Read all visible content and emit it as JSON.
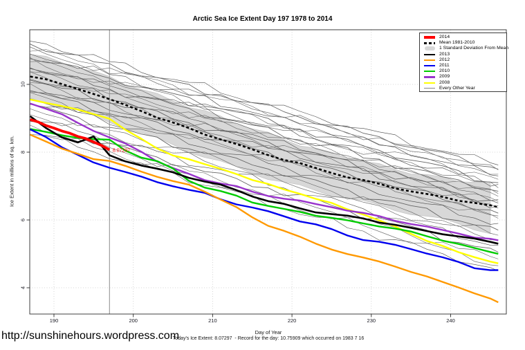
{
  "header": {
    "title": "Arctic Sea Ice Extent Day 197 1978 to 2014"
  },
  "footer": {
    "url": "http://sunshinehours.wordpress.com",
    "summary": "Today's Ice Extent: 8.07297  - Record for the day: 10.75909 which occurred on 1983 7 16"
  },
  "legend": {
    "items": [
      {
        "label": "2014",
        "color": "#FF0000",
        "type": "line",
        "weight": 3.5
      },
      {
        "label": "Mean 1981-2010",
        "color": "#000000",
        "type": "dashed",
        "weight": 2.5
      },
      {
        "label": "1 Standard Deviation From Mean",
        "color": "#D8D8D8",
        "type": "band"
      },
      {
        "label": "2013",
        "color": "#000000",
        "type": "line",
        "weight": 2.2
      },
      {
        "label": "2012",
        "color": "#FF9900",
        "type": "line",
        "weight": 2.2
      },
      {
        "label": "2011",
        "color": "#0000EE",
        "type": "line",
        "weight": 2.2
      },
      {
        "label": "2010",
        "color": "#00CC00",
        "type": "line",
        "weight": 2.2
      },
      {
        "label": "2009",
        "color": "#9933CC",
        "type": "line",
        "weight": 2.2
      },
      {
        "label": "2008",
        "color": "#FFFF00",
        "type": "line",
        "weight": 2.2
      },
      {
        "label": "Every Other Year",
        "color": "#888888",
        "type": "line",
        "weight": 1
      }
    ]
  },
  "chart_data": {
    "type": "line",
    "title": "Arctic Sea Ice Extent Day 197 1978 to 2014",
    "xlabel": "Day of Year",
    "ylabel": "Ice Extent in millions of sq. km.",
    "xlim": [
      187,
      247
    ],
    "ylim": [
      3.2,
      11.6
    ],
    "xticks": [
      190,
      200,
      210,
      220,
      230,
      240
    ],
    "yticks": [
      4,
      6,
      8,
      10
    ],
    "grid": true,
    "legend_position": "top-right",
    "today_marker": {
      "day": 197,
      "color": "#8C8C8C"
    },
    "annotation": {
      "text": "8.07297",
      "day": 197.4,
      "value": 8.05,
      "color": "#FF0000"
    },
    "x_days": [
      187,
      189,
      191,
      193,
      195,
      197,
      200,
      204,
      208,
      212,
      216,
      220,
      224,
      228,
      232,
      236,
      240,
      243,
      246
    ],
    "band": {
      "label": "1 Standard Deviation From Mean",
      "fill_color": "#D8D8D8",
      "edge_color": "#C2C2C2",
      "top": [
        10.9,
        10.78,
        10.65,
        10.52,
        10.37,
        10.2,
        9.95,
        9.6,
        9.28,
        8.95,
        8.62,
        8.3,
        8.02,
        7.8,
        7.55,
        7.35,
        7.2,
        7.12,
        7.05
      ],
      "bottom": [
        9.6,
        9.47,
        9.33,
        9.2,
        9.05,
        8.9,
        8.65,
        8.3,
        7.95,
        7.62,
        7.3,
        7.05,
        6.8,
        6.6,
        6.35,
        6.15,
        5.95,
        5.75,
        5.55
      ]
    },
    "mean": {
      "label": "Mean 1981-2010",
      "color": "#000000",
      "dashed": true,
      "values": [
        10.25,
        10.13,
        10.0,
        9.87,
        9.72,
        9.55,
        9.3,
        8.95,
        8.62,
        8.3,
        8.0,
        7.72,
        7.45,
        7.22,
        7.0,
        6.8,
        6.62,
        6.5,
        6.38
      ]
    },
    "series": [
      {
        "name": "2008",
        "color": "#FFFF00",
        "width": 2.4,
        "values": [
          9.55,
          9.46,
          9.35,
          9.25,
          9.12,
          9.0,
          8.5,
          8.0,
          7.7,
          7.45,
          7.1,
          6.85,
          6.55,
          6.25,
          5.9,
          5.5,
          5.12,
          4.9,
          4.72
        ]
      },
      {
        "name": "2009",
        "color": "#9933CC",
        "width": 2.4,
        "values": [
          9.45,
          9.28,
          9.1,
          8.88,
          8.65,
          8.42,
          8.15,
          7.6,
          7.25,
          7.05,
          6.76,
          6.6,
          6.42,
          6.25,
          6.05,
          5.85,
          5.65,
          5.5,
          5.4
        ]
      },
      {
        "name": "2010",
        "color": "#00CC00",
        "width": 2.4,
        "values": [
          8.68,
          8.58,
          8.5,
          8.42,
          8.38,
          8.35,
          7.9,
          7.68,
          7.0,
          6.8,
          6.45,
          6.28,
          6.1,
          5.95,
          5.8,
          5.6,
          5.35,
          5.15,
          5.0
        ]
      },
      {
        "name": "2011",
        "color": "#0000EE",
        "width": 2.4,
        "values": [
          8.67,
          8.45,
          8.15,
          7.9,
          7.7,
          7.55,
          7.35,
          7.05,
          6.84,
          6.55,
          6.29,
          6.05,
          5.8,
          5.45,
          5.3,
          5.1,
          4.8,
          4.6,
          4.52
        ]
      },
      {
        "name": "2012",
        "color": "#FF9900",
        "width": 2.4,
        "values": [
          8.53,
          8.3,
          8.1,
          7.95,
          7.82,
          7.72,
          7.5,
          7.2,
          6.96,
          6.5,
          5.92,
          5.6,
          5.2,
          4.92,
          4.7,
          4.4,
          4.1,
          3.85,
          3.57
        ]
      },
      {
        "name": "2013",
        "color": "#000000",
        "width": 2.6,
        "values": [
          9.05,
          8.7,
          8.45,
          8.3,
          8.45,
          7.9,
          7.68,
          7.45,
          7.2,
          6.95,
          6.63,
          6.4,
          6.2,
          6.08,
          5.9,
          5.7,
          5.55,
          5.45,
          5.3
        ]
      }
    ],
    "series_2014": {
      "name": "2014",
      "color": "#FF0000",
      "width": 3.8,
      "x": [
        187,
        188,
        189,
        190,
        191,
        192,
        193,
        194,
        195,
        196,
        197
      ],
      "values": [
        8.97,
        8.9,
        8.8,
        8.72,
        8.62,
        8.55,
        8.45,
        8.4,
        8.3,
        8.2,
        8.07
      ]
    },
    "other_years": {
      "label": "Every Other Year",
      "shades": [
        "#474747",
        "#666666",
        "#585858",
        "#777777"
      ],
      "widths": [
        0.6,
        0.9,
        0.55,
        0.75
      ],
      "lines": [
        {
          "start": 11.28,
          "end": 7.62
        },
        {
          "start": 11.18,
          "end": 7.5
        },
        {
          "start": 11.08,
          "end": 7.35
        },
        {
          "start": 11.0,
          "end": 7.48
        },
        {
          "start": 10.9,
          "end": 7.3
        },
        {
          "start": 10.82,
          "end": 7.1
        },
        {
          "start": 10.72,
          "end": 7.2
        },
        {
          "start": 10.65,
          "end": 6.95
        },
        {
          "start": 10.55,
          "end": 7.05
        },
        {
          "start": 10.48,
          "end": 6.85
        },
        {
          "start": 10.4,
          "end": 6.7
        },
        {
          "start": 10.3,
          "end": 6.78
        },
        {
          "start": 10.22,
          "end": 6.6
        },
        {
          "start": 10.12,
          "end": 6.5
        },
        {
          "start": 10.05,
          "end": 6.55
        },
        {
          "start": 9.95,
          "end": 6.35
        },
        {
          "start": 9.88,
          "end": 6.42
        },
        {
          "start": 9.78,
          "end": 6.2
        },
        {
          "start": 9.68,
          "end": 6.05
        },
        {
          "start": 9.6,
          "end": 6.12
        },
        {
          "start": 9.5,
          "end": 5.9
        },
        {
          "start": 9.38,
          "end": 5.7
        },
        {
          "start": 9.25,
          "end": 5.55
        },
        {
          "start": 9.12,
          "end": 5.4
        },
        {
          "start": 9.0,
          "end": 5.25
        },
        {
          "start": 8.88,
          "end": 5.05
        },
        {
          "start": 8.78,
          "end": 4.85
        },
        {
          "start": 8.68,
          "end": 4.65
        },
        {
          "start": 8.58,
          "end": 4.5
        }
      ]
    }
  }
}
